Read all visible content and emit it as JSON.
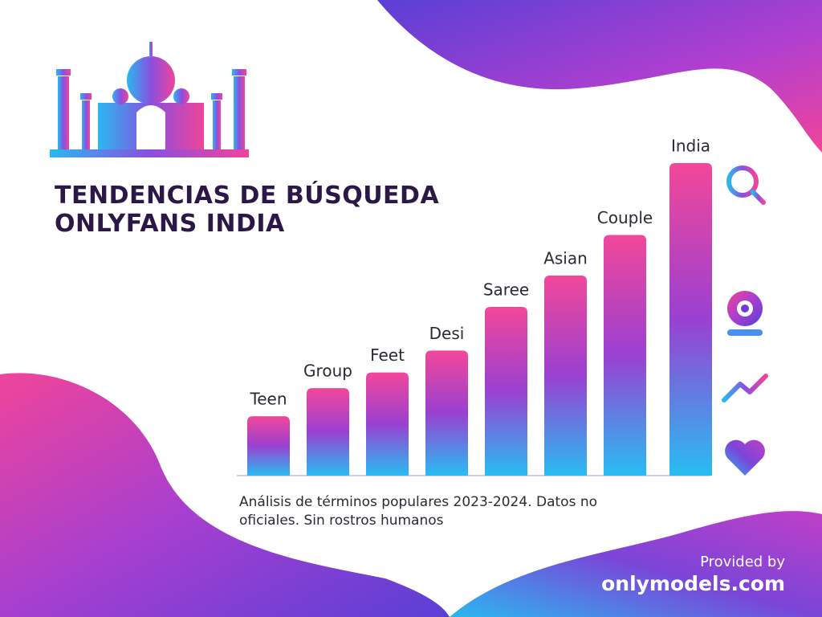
{
  "chart_data": {
    "type": "bar",
    "title": [
      "TENDENCIAS DE BÚSQUEDA",
      "ONLYFANS INDIA"
    ],
    "categories": [
      "Teen",
      "Group",
      "Feet",
      "Desi",
      "Saree",
      "Asian",
      "Couple",
      "India"
    ],
    "values": [
      19,
      28,
      33,
      40,
      54,
      64,
      77,
      100
    ],
    "ylim": [
      0,
      100
    ],
    "note": "Análisis de términos populares 2023-2024. Datos no oficiales. Sin rostros humanos",
    "provided_by": "Provided by",
    "source": "onlymodels.com"
  }
}
